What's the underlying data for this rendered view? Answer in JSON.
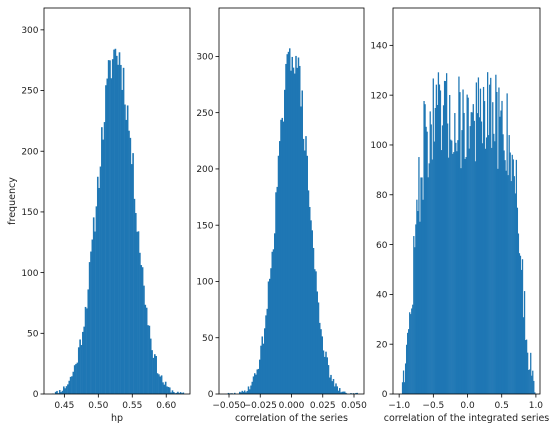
{
  "chart_data": [
    {
      "type": "bar",
      "subtype": "histogram",
      "xlabel": "hp",
      "ylabel": "frequency",
      "xlim": [
        0.42,
        0.635
      ],
      "ylim": [
        0,
        318
      ],
      "xticks": [
        "0.45",
        "0.50",
        "0.55",
        "0.60"
      ],
      "xtick_values": [
        0.45,
        0.5,
        0.55,
        0.6
      ],
      "yticks": [
        "0",
        "50",
        "100",
        "150",
        "200",
        "250",
        "300"
      ],
      "ytick_values": [
        0,
        50,
        100,
        150,
        200,
        250,
        300
      ],
      "distribution": {
        "shape": "normal",
        "center": 0.526,
        "spread": 0.027,
        "peak": 282
      },
      "x_range": [
        0.428,
        0.628
      ],
      "bin_width": 0.002,
      "color": "#1f77b4",
      "grid": false
    },
    {
      "type": "bar",
      "subtype": "histogram",
      "xlabel": "correlation of the series",
      "ylabel": "",
      "xlim": [
        -0.058,
        0.058
      ],
      "ylim": [
        0,
        343
      ],
      "xticks": [
        "−0.050",
        "−0.025",
        "0.000",
        "0.025",
        "0.050"
      ],
      "xtick_values": [
        -0.05,
        -0.025,
        0.0,
        0.025,
        0.05
      ],
      "yticks": [
        "0",
        "50",
        "100",
        "150",
        "200",
        "250",
        "300"
      ],
      "ytick_values": [
        0,
        50,
        100,
        150,
        200,
        250,
        300
      ],
      "distribution": {
        "shape": "normal",
        "center": 0.001,
        "spread": 0.0125,
        "peak": 305
      },
      "x_range": [
        -0.052,
        0.053
      ],
      "bin_width": 0.001,
      "color": "#1f77b4",
      "grid": false
    },
    {
      "type": "bar",
      "subtype": "histogram",
      "xlabel": "correlation of the integrated series",
      "ylabel": "",
      "xlim": [
        -1.09,
        1.06
      ],
      "ylim": [
        0,
        155
      ],
      "xticks": [
        "−1.0",
        "−0.5",
        "0.0",
        "0.5",
        "1.0"
      ],
      "xtick_values": [
        -1.0,
        -0.5,
        0.0,
        0.5,
        1.0
      ],
      "yticks": [
        "0",
        "20",
        "40",
        "60",
        "80",
        "100",
        "120",
        "140"
      ],
      "ytick_values": [
        0,
        20,
        40,
        60,
        80,
        100,
        120,
        140
      ],
      "distribution": {
        "shape": "plateau",
        "center": 0.0,
        "spread": 0.78,
        "peak": 110
      },
      "x_range": [
        -0.96,
        0.99
      ],
      "bin_width": 0.015,
      "color": "#1f77b4",
      "grid": false
    }
  ]
}
